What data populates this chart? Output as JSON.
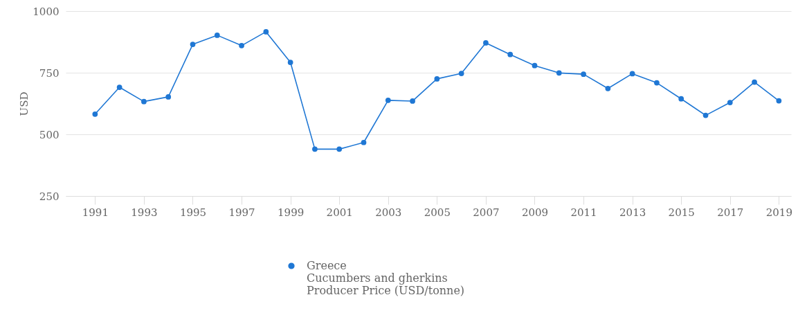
{
  "chart_data": {
    "type": "line",
    "ylabel": "USD",
    "x": [
      1991,
      1992,
      1993,
      1994,
      1995,
      1996,
      1997,
      1998,
      1999,
      2000,
      2001,
      2002,
      2003,
      2004,
      2005,
      2006,
      2007,
      2008,
      2009,
      2010,
      2011,
      2012,
      2013,
      2014,
      2015,
      2016,
      2017,
      2018,
      2019
    ],
    "series": [
      {
        "name": "Greece\nCucumbers and gherkins\nProducer Price (USD/tonne)",
        "color": "#1f77d4",
        "values": [
          582,
          691,
          633,
          652,
          865,
          902,
          860,
          916,
          792,
          440,
          440,
          467,
          638,
          635,
          725,
          747,
          871,
          824,
          779,
          749,
          744,
          686,
          746,
          709,
          644,
          577,
          629,
          712,
          636
        ]
      }
    ],
    "xlim": [
      1989.8,
      2019.5
    ],
    "xticks": [
      1991,
      1993,
      1995,
      1997,
      1999,
      2001,
      2003,
      2005,
      2007,
      2009,
      2011,
      2013,
      2015,
      2017,
      2019
    ],
    "ylim": [
      250,
      1000
    ],
    "yticks": [
      250,
      500,
      750,
      1000
    ],
    "grid": "y",
    "legend": "bottom",
    "marker": "circle",
    "line_style": "solid"
  }
}
